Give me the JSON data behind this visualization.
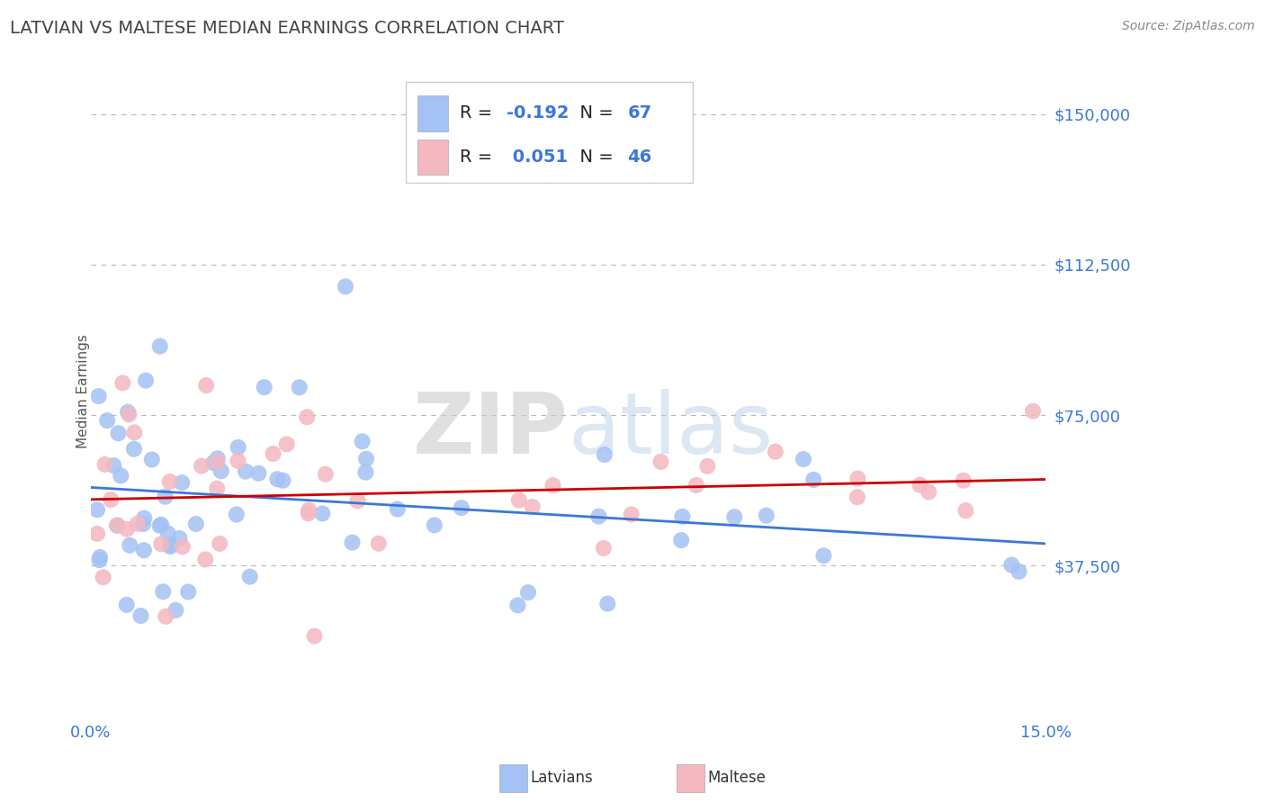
{
  "title": "LATVIAN VS MALTESE MEDIAN EARNINGS CORRELATION CHART",
  "source": "Source: ZipAtlas.com",
  "ylabel": "Median Earnings",
  "yticks": [
    0,
    37500,
    75000,
    112500,
    150000
  ],
  "ytick_labels": [
    "",
    "$37,500",
    "$75,000",
    "$112,500",
    "$150,000"
  ],
  "xlim": [
    0.0,
    0.15
  ],
  "ylim": [
    12000,
    162000
  ],
  "watermark": "ZIPatlas",
  "legend_latvians_R": "-0.192",
  "legend_latvians_N": "67",
  "legend_maltese_R": "0.051",
  "legend_maltese_N": "46",
  "blue_color": "#a4c2f4",
  "pink_color": "#f4b8c1",
  "blue_line_color": "#3c78d8",
  "pink_line_color": "#cc0000",
  "title_color": "#434343",
  "axis_label_color": "#3c78d8",
  "grid_color": "#b7b7b7",
  "background_color": "#ffffff",
  "blue_trend_x0": 0.0,
  "blue_trend_y0": 57000,
  "blue_trend_x1": 0.15,
  "blue_trend_y1": 43000,
  "pink_trend_x0": 0.0,
  "pink_trend_y0": 54000,
  "pink_trend_x1": 0.15,
  "pink_trend_y1": 59000
}
